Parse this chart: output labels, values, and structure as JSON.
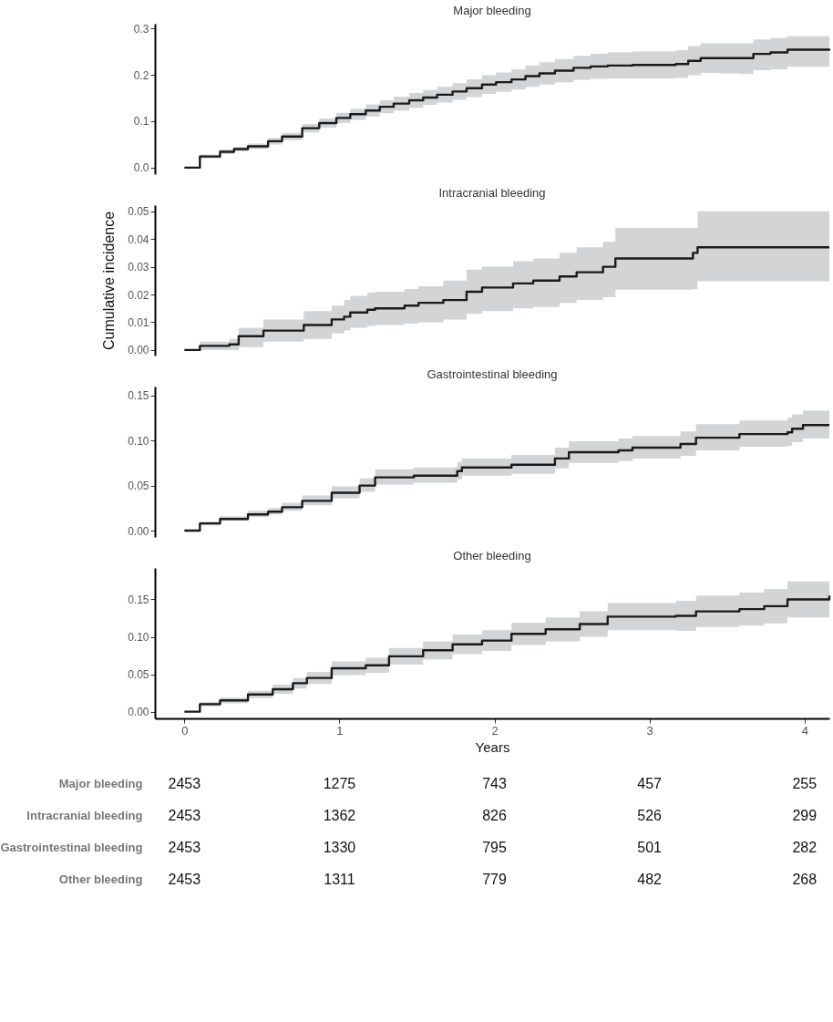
{
  "chart_data": [
    {
      "type": "step",
      "title": "Major bleeding",
      "xlim": [
        -0.19,
        4.16
      ],
      "xticks": [
        0,
        1,
        2,
        3,
        4
      ],
      "ylim": [
        -0.014,
        0.31
      ],
      "yticks": [
        {
          "value": 0,
          "label": "0.0"
        },
        {
          "value": 0.1,
          "label": "0.1"
        },
        {
          "value": 0.2,
          "label": "0.2"
        },
        {
          "value": 0.3,
          "label": "0.3"
        }
      ],
      "tick_labels": "y",
      "x": [
        0,
        0.1,
        0.23,
        0.32,
        0.41,
        0.54,
        0.63,
        0.76,
        0.87,
        0.98,
        1.07,
        1.17,
        1.26,
        1.35,
        1.45,
        1.54,
        1.63,
        1.73,
        1.82,
        1.92,
        2.01,
        2.11,
        2.2,
        2.29,
        2.39,
        2.51,
        2.62,
        2.73,
        2.89,
        3.17,
        3.25,
        3.33,
        3.45,
        3.58,
        3.67,
        3.78,
        3.89,
        4.16
      ],
      "series": [
        {
          "color": "#1a1a1a",
          "values": [
            0,
            0.024,
            0.034,
            0.04,
            0.046,
            0.057,
            0.067,
            0.085,
            0.096,
            0.107,
            0.115,
            0.123,
            0.131,
            0.138,
            0.145,
            0.151,
            0.157,
            0.164,
            0.171,
            0.179,
            0.184,
            0.19,
            0.197,
            0.203,
            0.209,
            0.215,
            0.218,
            0.22,
            0.221,
            0.223,
            0.23,
            0.236,
            0.236,
            0.236,
            0.245,
            0.248,
            0.254,
            0.256
          ],
          "lower": [
            0,
            0.02,
            0.029,
            0.035,
            0.04,
            0.05,
            0.059,
            0.076,
            0.086,
            0.096,
            0.103,
            0.11,
            0.117,
            0.123,
            0.129,
            0.135,
            0.14,
            0.146,
            0.152,
            0.159,
            0.163,
            0.168,
            0.174,
            0.179,
            0.184,
            0.189,
            0.191,
            0.192,
            0.192,
            0.193,
            0.199,
            0.204,
            0.203,
            0.202,
            0.21,
            0.212,
            0.217,
            0.228
          ],
          "upper": [
            0,
            0.028,
            0.039,
            0.045,
            0.052,
            0.064,
            0.075,
            0.094,
            0.106,
            0.118,
            0.127,
            0.136,
            0.145,
            0.153,
            0.161,
            0.167,
            0.174,
            0.182,
            0.19,
            0.199,
            0.205,
            0.212,
            0.22,
            0.227,
            0.234,
            0.241,
            0.245,
            0.248,
            0.25,
            0.253,
            0.262,
            0.268,
            0.268,
            0.268,
            0.276,
            0.279,
            0.283,
            0.284
          ]
        }
      ]
    },
    {
      "type": "step",
      "title": "Intracranial bleeding",
      "ylabel": "Cumulative incidence",
      "xlim": [
        -0.19,
        4.16
      ],
      "xticks": [
        0,
        1,
        2,
        3,
        4
      ],
      "ylim": [
        -0.002,
        0.0522
      ],
      "yticks": [
        {
          "value": 0,
          "label": "0.00"
        },
        0.01,
        0.02,
        0.03,
        0.04,
        0.05
      ],
      "tick_labels": "y",
      "x": [
        0,
        0.1,
        0.29,
        0.35,
        0.51,
        0.77,
        0.95,
        1.03,
        1.07,
        1.18,
        1.23,
        1.42,
        1.51,
        1.67,
        1.82,
        1.92,
        2.12,
        2.25,
        2.42,
        2.53,
        2.7,
        2.78,
        3.28,
        3.31,
        4.16
      ],
      "series": [
        {
          "color": "#1a1a1a",
          "values": [
            0,
            0.0015,
            0.002,
            0.005,
            0.007,
            0.009,
            0.011,
            0.012,
            0.0135,
            0.0145,
            0.015,
            0.016,
            0.017,
            0.018,
            0.021,
            0.0225,
            0.024,
            0.025,
            0.0265,
            0.028,
            0.03,
            0.033,
            0.035,
            0.037,
            0.037
          ],
          "lower": [
            0,
            0,
            0,
            0.001,
            0.003,
            0.004,
            0.006,
            0.007,
            0.008,
            0.0087,
            0.009,
            0.0095,
            0.01,
            0.011,
            0.013,
            0.014,
            0.015,
            0.0155,
            0.017,
            0.018,
            0.019,
            0.0217,
            0.022,
            0.0248,
            0.0248
          ],
          "upper": [
            0,
            0.003,
            0.004,
            0.008,
            0.011,
            0.014,
            0.016,
            0.018,
            0.0195,
            0.0207,
            0.021,
            0.022,
            0.023,
            0.025,
            0.029,
            0.03,
            0.032,
            0.033,
            0.035,
            0.037,
            0.039,
            0.044,
            0.044,
            0.05,
            0.05
          ]
        }
      ]
    },
    {
      "type": "step",
      "title": "Gastrointestinal bleeding",
      "xlim": [
        -0.19,
        4.16
      ],
      "xticks": [
        0,
        1,
        2,
        3,
        4
      ],
      "ylim": [
        -0.007,
        0.1597
      ],
      "yticks": [
        {
          "value": 0,
          "label": "0.00"
        },
        0.05,
        {
          "value": 0.1,
          "label": "0.10"
        },
        0.15
      ],
      "tick_labels": "y",
      "x": [
        0,
        0.1,
        0.23,
        0.41,
        0.54,
        0.63,
        0.76,
        0.95,
        1.13,
        1.23,
        1.48,
        1.76,
        1.79,
        2.11,
        2.39,
        2.48,
        2.8,
        2.89,
        3.2,
        3.3,
        3.58,
        3.89,
        3.92,
        3.99,
        4.16
      ],
      "series": [
        {
          "color": "#1a1a1a",
          "values": [
            0,
            0.008,
            0.013,
            0.018,
            0.021,
            0.026,
            0.033,
            0.042,
            0.05,
            0.059,
            0.061,
            0.066,
            0.07,
            0.073,
            0.08,
            0.087,
            0.089,
            0.092,
            0.096,
            0.103,
            0.107,
            0.109,
            0.113,
            0.117,
            0.117
          ],
          "lower": [
            0,
            0.006,
            0.011,
            0.015,
            0.018,
            0.022,
            0.028,
            0.036,
            0.043,
            0.051,
            0.053,
            0.057,
            0.061,
            0.063,
            0.069,
            0.075,
            0.077,
            0.08,
            0.083,
            0.089,
            0.093,
            0.094,
            0.098,
            0.102,
            0.103
          ],
          "upper": [
            0,
            0.01,
            0.016,
            0.022,
            0.025,
            0.031,
            0.039,
            0.049,
            0.058,
            0.068,
            0.07,
            0.076,
            0.08,
            0.084,
            0.092,
            0.099,
            0.102,
            0.105,
            0.11,
            0.118,
            0.122,
            0.125,
            0.129,
            0.133,
            0.138
          ]
        }
      ]
    },
    {
      "type": "step",
      "title": "Other bleeding",
      "xlabel": "Years",
      "xlim": [
        -0.19,
        4.16
      ],
      "xticks": [
        0,
        1,
        2,
        3,
        4
      ],
      "ylim": [
        -0.009,
        0.192
      ],
      "yticks": [
        {
          "value": 0,
          "label": "0.00"
        },
        0.05,
        {
          "value": 0.1,
          "label": "0.10"
        },
        0.15
      ],
      "x": [
        0,
        0.1,
        0.23,
        0.41,
        0.57,
        0.7,
        0.79,
        0.95,
        1.17,
        1.32,
        1.54,
        1.73,
        1.92,
        2.11,
        2.33,
        2.55,
        2.73,
        3.17,
        3.3,
        3.58,
        3.74,
        3.89,
        4.16
      ],
      "series": [
        {
          "color": "#1a1a1a",
          "values": [
            0,
            0.01,
            0.015,
            0.023,
            0.03,
            0.038,
            0.045,
            0.058,
            0.062,
            0.074,
            0.082,
            0.09,
            0.095,
            0.104,
            0.11,
            0.117,
            0.127,
            0.128,
            0.134,
            0.137,
            0.141,
            0.15,
            0.155
          ],
          "lower": [
            0,
            0.007,
            0.011,
            0.018,
            0.024,
            0.031,
            0.037,
            0.049,
            0.052,
            0.063,
            0.07,
            0.077,
            0.081,
            0.089,
            0.094,
            0.1,
            0.109,
            0.108,
            0.113,
            0.115,
            0.118,
            0.126,
            0.13
          ],
          "upper": [
            0,
            0.013,
            0.019,
            0.028,
            0.036,
            0.045,
            0.053,
            0.067,
            0.072,
            0.085,
            0.094,
            0.103,
            0.109,
            0.119,
            0.126,
            0.134,
            0.145,
            0.148,
            0.155,
            0.159,
            0.164,
            0.174,
            0.178
          ]
        }
      ]
    },
    {
      "type": "heatmap",
      "categories": [
        null,
        null,
        null,
        null,
        null
      ],
      "data_labels": true,
      "y_categories": [
        "Major bleeding",
        "Intracranial bleeding",
        "Gastrointestinal bleeding",
        "Other bleeding"
      ],
      "cells": [
        [
          2453,
          1275,
          743,
          457,
          255
        ],
        [
          2453,
          1362,
          826,
          526,
          299
        ],
        [
          2453,
          1330,
          795,
          501,
          282
        ],
        [
          2453,
          1311,
          779,
          482,
          268
        ]
      ]
    }
  ]
}
